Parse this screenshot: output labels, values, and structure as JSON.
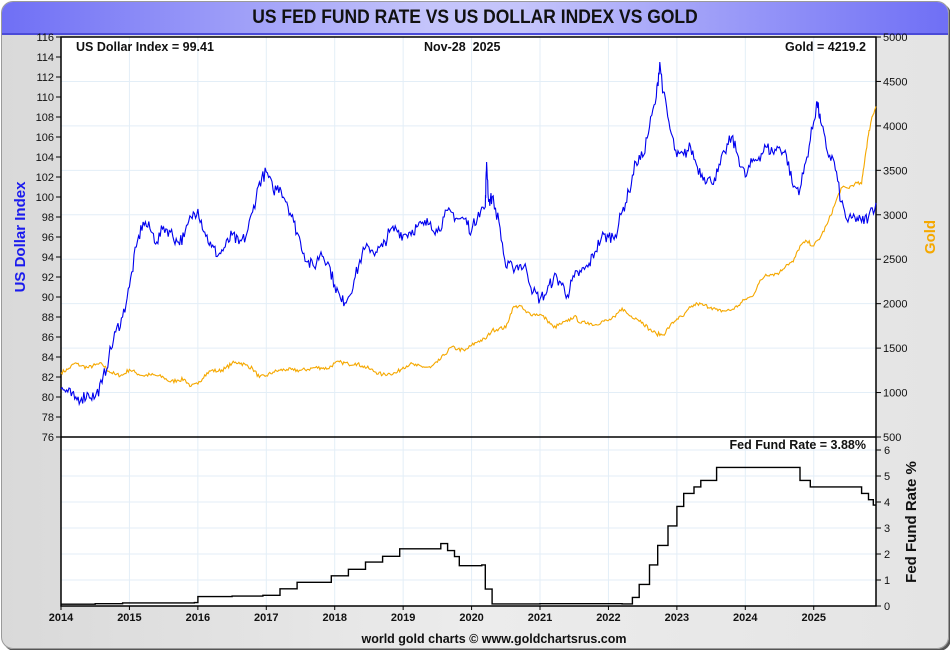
{
  "title": "US FED FUND RATE VS US DOLLAR INDEX VS GOLD",
  "footer": "world gold charts © www.goldchartsrus.com",
  "colors": {
    "dollar": "#0000ee",
    "gold": "#f5a800",
    "fed": "#000000",
    "grid": "#e3eef7",
    "left_axis_label": "#1a1aee",
    "right_axis_label": "#f5a800"
  },
  "chart_data": [
    {
      "type": "line",
      "panel": "upper",
      "title": "US Dollar Index vs Gold",
      "date_label": "Nov-28  2025",
      "annotations": {
        "dollar": "US Dollar Index = 99.41",
        "gold": "Gold = 4219.2"
      },
      "xlabel": "",
      "x_ticks": [
        "2014",
        "2015",
        "2016",
        "2017",
        "2018",
        "2019",
        "2020",
        "2021",
        "2022",
        "2023",
        "2024",
        "2025"
      ],
      "x_range": [
        2014.0,
        2025.91
      ],
      "y_left": {
        "label": "US Dollar Index",
        "range": [
          76,
          116
        ],
        "ticks": [
          76,
          78,
          80,
          82,
          84,
          86,
          88,
          90,
          92,
          94,
          96,
          98,
          100,
          102,
          104,
          106,
          108,
          110,
          112,
          114,
          116
        ]
      },
      "y_right": {
        "label": "Gold",
        "range": [
          500,
          5000
        ],
        "ticks": [
          500,
          1000,
          1500,
          2000,
          2500,
          3000,
          3500,
          4000,
          4500,
          5000
        ]
      },
      "grid": true,
      "series": [
        {
          "name": "US Dollar Index",
          "axis": "left",
          "x": [
            2014.0,
            2014.1,
            2014.2,
            2014.3,
            2014.4,
            2014.5,
            2014.6,
            2014.7,
            2014.8,
            2014.9,
            2015.0,
            2015.1,
            2015.2,
            2015.3,
            2015.4,
            2015.5,
            2015.6,
            2015.7,
            2015.8,
            2015.9,
            2016.0,
            2016.1,
            2016.2,
            2016.3,
            2016.4,
            2016.5,
            2016.6,
            2016.7,
            2016.8,
            2016.9,
            2017.0,
            2017.1,
            2017.2,
            2017.3,
            2017.4,
            2017.5,
            2017.6,
            2017.7,
            2017.8,
            2017.9,
            2018.0,
            2018.1,
            2018.2,
            2018.3,
            2018.4,
            2018.5,
            2018.6,
            2018.7,
            2018.8,
            2018.9,
            2019.0,
            2019.1,
            2019.2,
            2019.3,
            2019.4,
            2019.5,
            2019.6,
            2019.7,
            2019.8,
            2019.9,
            2020.0,
            2020.1,
            2020.2,
            2020.22,
            2020.25,
            2020.3,
            2020.4,
            2020.5,
            2020.6,
            2020.7,
            2020.8,
            2020.9,
            2021.0,
            2021.1,
            2021.2,
            2021.3,
            2021.4,
            2021.5,
            2021.6,
            2021.7,
            2021.8,
            2021.9,
            2022.0,
            2022.1,
            2022.2,
            2022.3,
            2022.4,
            2022.5,
            2022.6,
            2022.7,
            2022.75,
            2022.8,
            2022.9,
            2023.0,
            2023.1,
            2023.2,
            2023.3,
            2023.4,
            2023.5,
            2023.6,
            2023.7,
            2023.8,
            2023.9,
            2024.0,
            2024.1,
            2024.2,
            2024.3,
            2024.4,
            2024.5,
            2024.6,
            2024.7,
            2024.8,
            2024.9,
            2025.0,
            2025.05,
            2025.1,
            2025.2,
            2025.3,
            2025.4,
            2025.5,
            2025.6,
            2025.7,
            2025.8,
            2025.91
          ],
          "y": [
            80.8,
            80.5,
            79.8,
            79.9,
            80.3,
            80.0,
            81.4,
            84.0,
            86.5,
            88.0,
            91.0,
            95.0,
            97.5,
            96.8,
            95.5,
            97.0,
            96.5,
            95.5,
            96.0,
            98.0,
            98.8,
            96.5,
            95.0,
            94.2,
            95.0,
            96.2,
            95.3,
            96.0,
            98.5,
            101.5,
            102.5,
            100.7,
            101.0,
            99.5,
            97.5,
            95.5,
            93.5,
            93.0,
            94.5,
            93.5,
            91.2,
            89.5,
            90.0,
            92.0,
            94.3,
            95.0,
            94.5,
            95.0,
            96.5,
            96.8,
            96.2,
            96.5,
            97.0,
            97.2,
            97.5,
            96.5,
            98.0,
            98.5,
            97.8,
            97.8,
            96.6,
            98.5,
            99.0,
            103.5,
            99.5,
            100.0,
            97.5,
            93.0,
            93.0,
            93.2,
            92.8,
            90.5,
            89.8,
            90.5,
            92.0,
            91.5,
            90.2,
            92.0,
            92.5,
            93.0,
            94.5,
            96.0,
            96.0,
            96.2,
            98.5,
            100.5,
            103.5,
            104.0,
            107.0,
            110.0,
            113.5,
            110.5,
            106.8,
            104.0,
            104.2,
            105.0,
            103.0,
            102.0,
            101.5,
            102.5,
            104.5,
            106.0,
            104.0,
            102.0,
            103.5,
            104.0,
            105.0,
            104.5,
            105.0,
            104.2,
            101.0,
            100.8,
            104.0,
            107.5,
            109.5,
            107.5,
            104.5,
            103.5,
            99.5,
            97.5,
            98.0,
            97.5,
            98.0,
            99.41
          ]
        },
        {
          "name": "Gold",
          "axis": "right",
          "x": [
            2014.0,
            2014.1,
            2014.2,
            2014.3,
            2014.4,
            2014.5,
            2014.6,
            2014.7,
            2014.8,
            2014.9,
            2015.0,
            2015.1,
            2015.2,
            2015.3,
            2015.4,
            2015.5,
            2015.6,
            2015.7,
            2015.8,
            2015.9,
            2016.0,
            2016.1,
            2016.2,
            2016.3,
            2016.4,
            2016.5,
            2016.6,
            2016.7,
            2016.8,
            2016.9,
            2017.0,
            2017.1,
            2017.2,
            2017.3,
            2017.4,
            2017.5,
            2017.6,
            2017.7,
            2017.8,
            2017.9,
            2018.0,
            2018.1,
            2018.2,
            2018.3,
            2018.4,
            2018.5,
            2018.6,
            2018.7,
            2018.8,
            2018.9,
            2019.0,
            2019.1,
            2019.2,
            2019.3,
            2019.4,
            2019.5,
            2019.6,
            2019.7,
            2019.8,
            2019.9,
            2020.0,
            2020.1,
            2020.2,
            2020.3,
            2020.4,
            2020.5,
            2020.6,
            2020.7,
            2020.8,
            2020.9,
            2021.0,
            2021.1,
            2021.2,
            2021.3,
            2021.4,
            2021.5,
            2021.6,
            2021.7,
            2021.8,
            2021.9,
            2022.0,
            2022.1,
            2022.2,
            2022.3,
            2022.4,
            2022.5,
            2022.6,
            2022.7,
            2022.8,
            2022.9,
            2023.0,
            2023.1,
            2023.2,
            2023.3,
            2023.4,
            2023.5,
            2023.6,
            2023.7,
            2023.8,
            2023.9,
            2024.0,
            2024.1,
            2024.2,
            2024.3,
            2024.4,
            2024.5,
            2024.6,
            2024.7,
            2024.8,
            2024.9,
            2025.0,
            2025.1,
            2025.2,
            2025.3,
            2025.4,
            2025.5,
            2025.6,
            2025.7,
            2025.75,
            2025.8,
            2025.85,
            2025.91
          ],
          "y": [
            1225,
            1260,
            1330,
            1300,
            1280,
            1310,
            1320,
            1240,
            1200,
            1195,
            1260,
            1220,
            1190,
            1200,
            1190,
            1170,
            1120,
            1140,
            1150,
            1070,
            1095,
            1200,
            1250,
            1240,
            1270,
            1330,
            1340,
            1310,
            1270,
            1170,
            1190,
            1230,
            1250,
            1260,
            1250,
            1250,
            1260,
            1280,
            1280,
            1270,
            1330,
            1340,
            1320,
            1330,
            1300,
            1270,
            1230,
            1200,
            1215,
            1220,
            1285,
            1320,
            1300,
            1290,
            1280,
            1340,
            1420,
            1510,
            1490,
            1470,
            1530,
            1580,
            1600,
            1700,
            1720,
            1730,
            1950,
            1980,
            1900,
            1880,
            1880,
            1820,
            1730,
            1770,
            1800,
            1860,
            1780,
            1790,
            1760,
            1800,
            1810,
            1850,
            1950,
            1870,
            1840,
            1790,
            1710,
            1660,
            1650,
            1750,
            1830,
            1860,
            1960,
            2000,
            1980,
            1960,
            1920,
            1920,
            1930,
            1980,
            2050,
            2080,
            2230,
            2330,
            2330,
            2350,
            2440,
            2470,
            2650,
            2700,
            2650,
            2750,
            2900,
            3100,
            3300,
            3300,
            3350,
            3350,
            3650,
            3900,
            4100,
            4219.2
          ]
        }
      ]
    },
    {
      "type": "line",
      "panel": "lower",
      "title": "Fed Fund Rate",
      "annotations": {
        "fed": "Fed Fund Rate = 3.88%"
      },
      "x_ticks": [
        "2014",
        "2015",
        "2016",
        "2017",
        "2018",
        "2019",
        "2020",
        "2021",
        "2022",
        "2023",
        "2024",
        "2025"
      ],
      "x_range": [
        2014.0,
        2025.91
      ],
      "y_right": {
        "label": "Fed Fund Rate %",
        "range": [
          0,
          6
        ],
        "ticks": [
          0,
          1,
          2,
          3,
          4,
          5,
          6
        ]
      },
      "grid": true,
      "series": [
        {
          "name": "Fed Fund Rate",
          "step": true,
          "x": [
            2014.0,
            2014.5,
            2014.9,
            2015.95,
            2016.0,
            2016.5,
            2016.95,
            2017.2,
            2017.45,
            2017.95,
            2018.2,
            2018.45,
            2018.7,
            2018.95,
            2019.55,
            2019.65,
            2019.75,
            2019.82,
            2020.15,
            2020.2,
            2020.3,
            2021.0,
            2022.2,
            2022.35,
            2022.45,
            2022.6,
            2022.72,
            2022.87,
            2023.0,
            2023.1,
            2023.25,
            2023.35,
            2023.58,
            2024.7,
            2024.8,
            2024.95,
            2025.7,
            2025.8,
            2025.87,
            2025.91
          ],
          "y": [
            0.07,
            0.09,
            0.12,
            0.13,
            0.36,
            0.38,
            0.41,
            0.66,
            0.91,
            1.16,
            1.41,
            1.69,
            1.91,
            2.2,
            2.4,
            2.13,
            1.9,
            1.55,
            1.58,
            0.65,
            0.08,
            0.09,
            0.08,
            0.33,
            0.83,
            1.58,
            2.33,
            3.08,
            3.83,
            4.33,
            4.58,
            4.83,
            5.33,
            5.33,
            4.83,
            4.58,
            4.33,
            4.09,
            3.88,
            3.88
          ]
        }
      ]
    }
  ]
}
